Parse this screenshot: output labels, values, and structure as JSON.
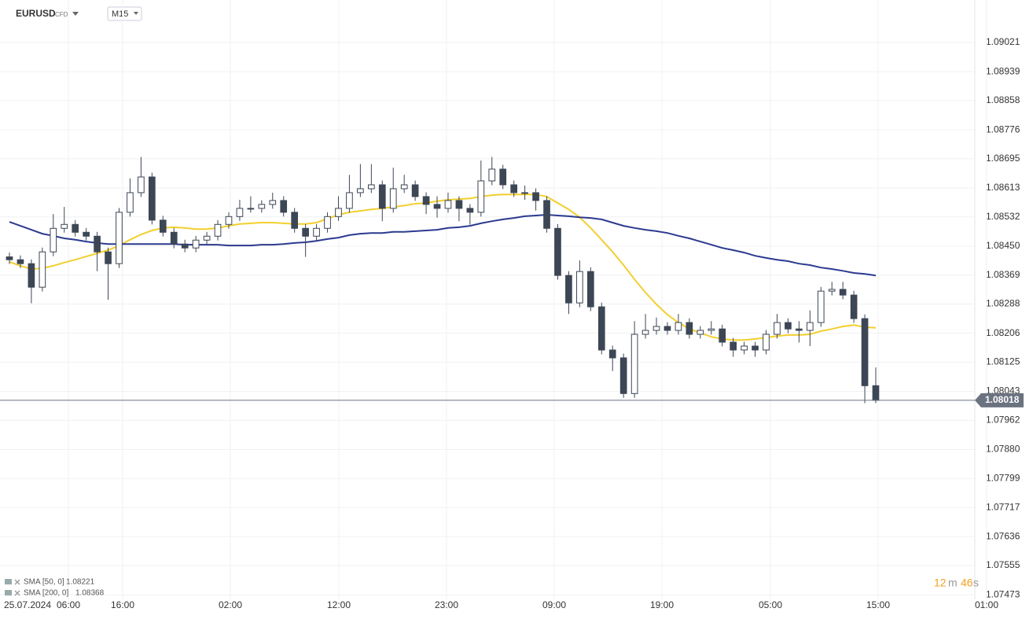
{
  "header": {
    "symbol": "EURUSD",
    "instrument": "CFD",
    "timeframe": "M15"
  },
  "chart_data": {
    "type": "candlestick",
    "open": [
      1.0842,
      1.08412,
      1.08401,
      1.08335,
      1.08434,
      1.085,
      1.08511,
      1.08489,
      1.08478,
      1.08434,
      1.08401,
      1.08545,
      1.086,
      1.08644,
      1.08523,
      1.08489,
      1.08456,
      1.08445,
      1.08467,
      1.08478,
      1.08511,
      1.08533,
      1.08556,
      1.08556,
      1.08567,
      1.08578,
      1.08545,
      1.085,
      1.08478,
      1.085,
      1.08533,
      1.08556,
      1.086,
      1.08611,
      1.08622,
      1.08556,
      1.08611,
      1.08622,
      1.08589,
      1.08567,
      1.08556,
      1.08578,
      1.08556,
      1.08545,
      1.08633,
      1.08666,
      1.08622,
      1.086,
      1.086,
      1.08578,
      1.085,
      1.08368,
      1.08291,
      1.08379,
      1.0828,
      1.08159,
      1.08137,
      1.08037,
      1.08203,
      1.08214,
      1.08225,
      1.08214,
      1.08236,
      1.08203,
      1.08214,
      1.08218,
      1.08181,
      1.08159,
      1.0817,
      1.08159,
      1.08203,
      1.08236,
      1.08218,
      1.08214,
      1.08236,
      1.08324,
      1.08329,
      1.08313,
      1.08247,
      1.08059
    ],
    "high": [
      1.08432,
      1.08424,
      1.08413,
      1.08446,
      1.0854,
      1.0856,
      1.08523,
      1.08501,
      1.0849,
      1.08446,
      1.08557,
      1.0864,
      1.087,
      1.08656,
      1.08535,
      1.08501,
      1.08468,
      1.08479,
      1.0849,
      1.08523,
      1.08545,
      1.0858,
      1.0859,
      1.08579,
      1.086,
      1.0859,
      1.08557,
      1.08512,
      1.08512,
      1.08545,
      1.0859,
      1.0865,
      1.0868,
      1.0868,
      1.08634,
      1.0867,
      1.0865,
      1.08634,
      1.08601,
      1.0859,
      1.086,
      1.0859,
      1.08568,
      1.0869,
      1.087,
      1.08678,
      1.08634,
      1.0862,
      1.08612,
      1.0859,
      1.08512,
      1.0838,
      1.0841,
      1.08391,
      1.08292,
      1.08171,
      1.08149,
      1.0824,
      1.0826,
      1.0825,
      1.08237,
      1.0826,
      1.08248,
      1.08226,
      1.0824,
      1.0823,
      1.08193,
      1.08182,
      1.08182,
      1.08215,
      1.0826,
      1.08248,
      1.0824,
      1.0827,
      1.08336,
      1.0835,
      1.0835,
      1.08325,
      1.08259,
      1.0811
    ],
    "low": [
      1.084,
      1.08389,
      1.0829,
      1.08323,
      1.08422,
      1.08488,
      1.08477,
      1.08466,
      1.0838,
      1.083,
      1.08389,
      1.08533,
      1.08588,
      1.08511,
      1.08477,
      1.08444,
      1.08433,
      1.08433,
      1.08455,
      1.08466,
      1.08499,
      1.08521,
      1.08544,
      1.08544,
      1.08555,
      1.08533,
      1.08488,
      1.0842,
      1.08466,
      1.08488,
      1.08521,
      1.08544,
      1.08588,
      1.08599,
      1.0852,
      1.08544,
      1.08599,
      1.08577,
      1.0854,
      1.0853,
      1.08544,
      1.0852,
      1.0851,
      1.08533,
      1.08621,
      1.0861,
      1.08588,
      1.0858,
      1.0855,
      1.08488,
      1.08356,
      1.0826,
      1.08279,
      1.08268,
      1.08147,
      1.081,
      1.08025,
      1.08025,
      1.08191,
      1.08202,
      1.08202,
      1.08202,
      1.08191,
      1.08191,
      1.08202,
      1.08169,
      1.0814,
      1.08147,
      1.0814,
      1.08147,
      1.08191,
      1.08206,
      1.0818,
      1.0817,
      1.08224,
      1.08312,
      1.08301,
      1.08235,
      1.0801,
      1.0801
    ],
    "close": [
      1.08412,
      1.08401,
      1.08335,
      1.08434,
      1.085,
      1.08511,
      1.08489,
      1.08478,
      1.08434,
      1.08401,
      1.08545,
      1.086,
      1.08644,
      1.08523,
      1.08489,
      1.08456,
      1.08445,
      1.08467,
      1.08478,
      1.08511,
      1.08533,
      1.08556,
      1.08556,
      1.08567,
      1.08578,
      1.08545,
      1.085,
      1.08478,
      1.085,
      1.08533,
      1.08556,
      1.086,
      1.08611,
      1.08622,
      1.08556,
      1.08611,
      1.08622,
      1.08589,
      1.08567,
      1.08556,
      1.08578,
      1.08556,
      1.08545,
      1.08633,
      1.08666,
      1.08622,
      1.086,
      1.086,
      1.08578,
      1.085,
      1.08368,
      1.08291,
      1.08379,
      1.0828,
      1.08159,
      1.08137,
      1.08037,
      1.08203,
      1.08214,
      1.08225,
      1.08214,
      1.08236,
      1.08203,
      1.08214,
      1.08218,
      1.08181,
      1.08159,
      1.0817,
      1.08159,
      1.08203,
      1.08236,
      1.08218,
      1.08214,
      1.08236,
      1.08324,
      1.08329,
      1.08313,
      1.08247,
      1.08059,
      1.08018
    ],
    "up_color": "#ffffff",
    "down_color": "#3c4655",
    "wick_color": "#3c4655",
    "series": [
      {
        "name": "SMA [50, 0]",
        "color": "#f2cf2f",
        "last_value": 1.08221,
        "values": [
          1.08406,
          1.08395,
          1.08386,
          1.08388,
          1.08395,
          1.08404,
          1.08412,
          1.08421,
          1.0843,
          1.08439,
          1.08452,
          1.08468,
          1.08483,
          1.08494,
          1.08501,
          1.08503,
          1.08501,
          1.08498,
          1.08498,
          1.08501,
          1.08507,
          1.08512,
          1.08514,
          1.08516,
          1.08516,
          1.08514,
          1.08512,
          1.08512,
          1.08516,
          1.08527,
          1.08538,
          1.08545,
          1.08549,
          1.08553,
          1.08556,
          1.0856,
          1.08564,
          1.08569,
          1.08571,
          1.08576,
          1.0858,
          1.08582,
          1.08584,
          1.08589,
          1.08593,
          1.08595,
          1.08595,
          1.08595,
          1.08595,
          1.08589,
          1.08571,
          1.08553,
          1.08531,
          1.08501,
          1.08468,
          1.08434,
          1.08397,
          1.08357,
          1.0832,
          1.08287,
          1.08258,
          1.08236,
          1.08218,
          1.08207,
          1.08196,
          1.0819,
          1.08187,
          1.08187,
          1.0819,
          1.08194,
          1.08198,
          1.08201,
          1.08201,
          1.08203,
          1.08212,
          1.08218,
          1.08225,
          1.08229,
          1.08223,
          1.08221
        ]
      },
      {
        "name": "SMA [200, 0]",
        "color": "#2b3a8f",
        "last_value": 1.08368,
        "values": [
          1.08518,
          1.08507,
          1.08496,
          1.08485,
          1.08479,
          1.08472,
          1.08468,
          1.08463,
          1.08459,
          1.08456,
          1.08456,
          1.08456,
          1.08456,
          1.08456,
          1.08456,
          1.08456,
          1.08454,
          1.08454,
          1.08454,
          1.08454,
          1.08452,
          1.08452,
          1.08452,
          1.08454,
          1.08454,
          1.08456,
          1.08459,
          1.08461,
          1.08465,
          1.0847,
          1.08474,
          1.08481,
          1.08485,
          1.08487,
          1.08487,
          1.0849,
          1.0849,
          1.08492,
          1.08494,
          1.08496,
          1.08501,
          1.08503,
          1.08507,
          1.08514,
          1.0852,
          1.08525,
          1.08529,
          1.08534,
          1.08536,
          1.08538,
          1.08536,
          1.08534,
          1.08531,
          1.08529,
          1.08525,
          1.08516,
          1.08507,
          1.08501,
          1.08496,
          1.08492,
          1.08487,
          1.08479,
          1.08472,
          1.08463,
          1.08454,
          1.08445,
          1.08439,
          1.08432,
          1.08423,
          1.08417,
          1.08412,
          1.08408,
          1.08401,
          1.08397,
          1.0839,
          1.08386,
          1.08381,
          1.08375,
          1.08372,
          1.08368
        ]
      }
    ],
    "last_price": 1.08018,
    "ylim": [
      1.0746,
      1.0914
    ],
    "yticks": [
      1.09021,
      1.08939,
      1.08858,
      1.08776,
      1.08695,
      1.08613,
      1.08532,
      {
        "value": 1.0845,
        "label": "1.08450"
      },
      1.08369,
      1.08288,
      1.08206,
      1.08125,
      1.08043,
      1.07962,
      {
        "value": 1.0788,
        "label": "1.07880"
      },
      1.07799,
      1.07717,
      1.07636,
      1.07555,
      1.07473
    ],
    "x_labels": [
      "25.07.2024",
      "06:00",
      "16:00",
      "02:00",
      "12:00",
      "23:00",
      "09:00",
      "19:00",
      "05:00",
      "15:00",
      "01:00"
    ],
    "grid": true
  },
  "timer": {
    "minutes": 12,
    "minutes_unit": "m",
    "seconds": 46,
    "seconds_unit": "s"
  }
}
